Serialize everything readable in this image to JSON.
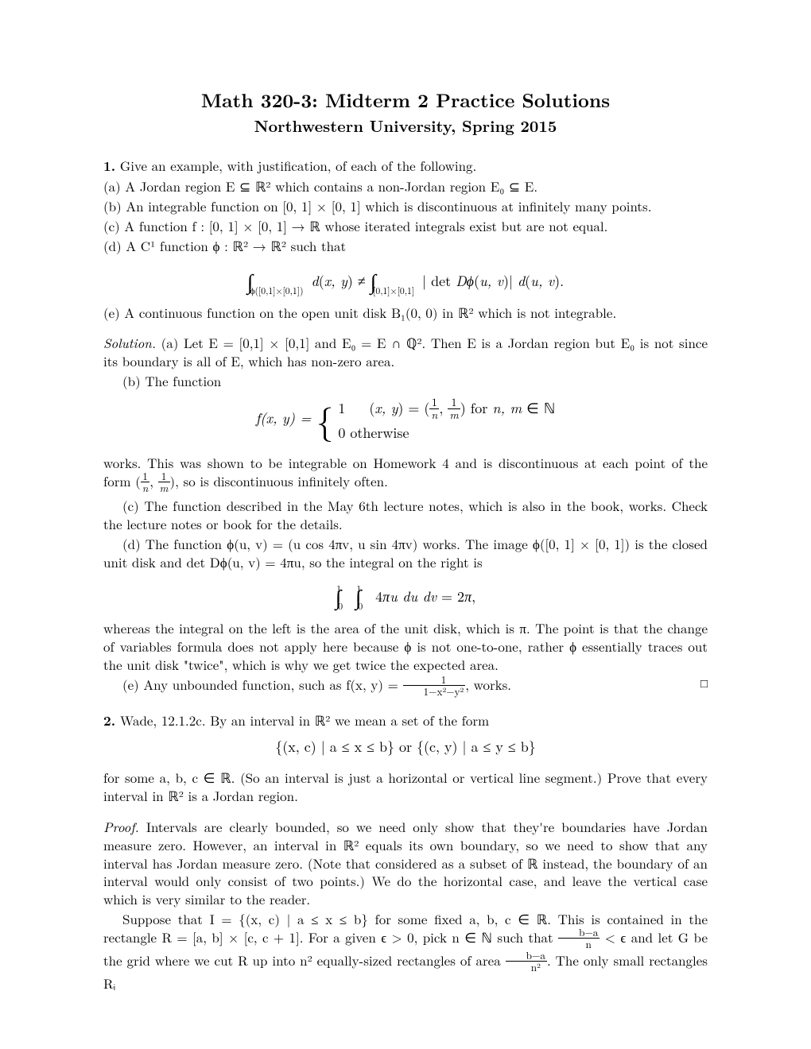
{
  "title": "Math 320-3: Midterm 2 Practice Solutions",
  "subtitle": "Northwestern University, Spring 2015",
  "p1": {
    "num": "1.",
    "lead": "Give an example, with justification, of each of the following.",
    "a": "(a) A Jordan region E ⊆ ℝ² which contains a non-Jordan region E₀ ⊆ E.",
    "b": "(b) An integrable function on [0, 1] × [0, 1] which is discontinuous at infinitely many points.",
    "c": "(c) A function f : [0, 1] × [0, 1] → ℝ whose iterated integrals exist but are not equal.",
    "d": "(d) A C¹ function ϕ : ℝ² → ℝ² such that",
    "d_disp": "∫  d(x, y) ≠ ∫  | det Dϕ(u, v)| d(u, v).",
    "d_lowlim_left": "ϕ([0,1]×[0,1])",
    "d_lowlim_right": "[0,1]×[0,1]",
    "e": "(e) A continuous function on the open unit disk B₁(0, 0) in ℝ² which is not integrable."
  },
  "sol1": {
    "label": "Solution.",
    "a": "(a) Let E = [0,1] × [0,1] and E₀ = E ∩ ℚ². Then E is a Jordan region but E₀ is not since its boundary is all of E, which has non-zero area.",
    "b_lead": "(b) The function",
    "b_fn_lhs": "f(x, y) = ",
    "b_case1": "1    (x, y) = (¹⁄ₙ, ¹⁄ₘ) for n, m ∈ ℕ",
    "b_case2": "0    otherwise",
    "b_tail": "works. This was shown to be integrable on Homework 4 and is discontinuous at each point of the form (¹⁄ₙ, ¹⁄ₘ), so is discontinuous infinitely often.",
    "c": "(c) The function described in the May 6th lecture notes, which is also in the book, works. Check the lecture notes or book for the details.",
    "d_lead": "(d) The function ϕ(u, v) = (u cos 4πv, u sin 4πv) works. The image ϕ([0, 1] × [0, 1]) is the closed unit disk and det Dϕ(u, v) = 4πu, so the integral on the right is",
    "d_disp": "∫₀¹ ∫₀¹ 4πu du dv = 2π,",
    "d_tail": "whereas the integral on the left is the area of the unit disk, which is π. The point is that the change of variables formula does not apply here because ϕ is not one-to-one, rather ϕ essentially traces out the unit disk \"twice\", which is why we get twice the expected area.",
    "e": "(e) Any unbounded function, such as f(x, y) = ",
    "e_frac_num": "1",
    "e_frac_den": "1−x²−y²",
    "e_tail": ", works.",
    "qed": "□"
  },
  "p2": {
    "num": "2.",
    "lead": "Wade, 12.1.2c. By an interval in ℝ² we mean a set of the form",
    "disp": "{(x, c) | a ≤ x ≤ b}    or    {(c, y) | a ≤ y ≤ b}",
    "tail": "for some a, b, c ∈ ℝ. (So an interval is just a horizontal or vertical line segment.) Prove that every interval in ℝ² is a Jordan region."
  },
  "proof2": {
    "label": "Proof.",
    "para1": "Intervals are clearly bounded, so we need only show that they're boundaries have Jordan measure zero. However, an interval in ℝ² equals its own boundary, so we need to show that any interval has Jordan measure zero. (Note that considered as a subset of ℝ instead, the boundary of an interval would only consist of two points.) We do the horizontal case, and leave the vertical case which is very similar to the reader.",
    "para2a": "Suppose that I = {(x, c) | a ≤ x ≤ b} for some fixed a, b, c ∈ ℝ. This is contained in the rectangle R = [a, b] × [c, c + 1]. For a given ϵ > 0, pick n ∈ ℕ such that ",
    "para2_frac1_num": "b−a",
    "para2_frac1_den": "n",
    "para2b": " < ϵ and let G be the grid where we cut R up into n² equally-sized rectangles of area ",
    "para2_frac2_num": "b−a",
    "para2_frac2_den": "n²",
    "para2c": ". The only small rectangles Rᵢ"
  }
}
